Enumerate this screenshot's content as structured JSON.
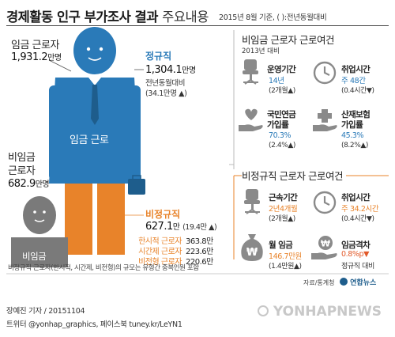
{
  "header": {
    "title_bold": "경제활동 인구 부가조사 결과",
    "title_thin": "주요내용",
    "note": "2015년 8월 기준, (  ):전년동월대비"
  },
  "wage_workers": {
    "label": "임금 근로자",
    "value": "1,931.2",
    "unit": "만명",
    "figure_text": "임금 근로"
  },
  "nonwage_workers": {
    "label_line1": "비임금",
    "label_line2": "근로자",
    "value": "682.9",
    "unit": "만명",
    "figure_text": "비임금"
  },
  "regular": {
    "title": "정규직",
    "value": "1,304.1",
    "unit": "만명",
    "sub1": "전년동월대비",
    "sub2": "(34.1만명 ▲)"
  },
  "irregular": {
    "title": "비정규직",
    "value": "627.1",
    "unit": "만",
    "change": "(19.4만 ▲)",
    "breakdown": [
      {
        "label": "한시적 근로자",
        "value": "363.8만"
      },
      {
        "label": "시간제 근로자",
        "value": "223.6만"
      },
      {
        "label": "비전형 근로자",
        "value": "220.6만"
      }
    ]
  },
  "nonwage_conditions": {
    "title": "비임금 근로자 근로여건",
    "subtitle": "2013년 대비",
    "stats": [
      {
        "label": "운영기간",
        "value": "14년",
        "change": "(2개월▲)",
        "icon": "office-chair-icon"
      },
      {
        "label": "취업시간",
        "value": "주 48간",
        "change": "(0.4시간▼)",
        "icon": "clock-icon"
      },
      {
        "label_line1": "국민연금",
        "label_line2": "가입률",
        "value": "70.3%",
        "change": "(2.4%▲)",
        "icon": "heart-hand-icon"
      },
      {
        "label_line1": "산재보험",
        "label_line2": "가입률",
        "value": "45.3%",
        "change": "(8.2%▲)",
        "icon": "medical-cross-hand-icon"
      }
    ]
  },
  "irregular_conditions": {
    "title": "비정규직 근로자 근로여건",
    "stats": [
      {
        "label": "근속기간",
        "value": "2년4개월",
        "change": "(2개월▲)",
        "icon": "office-chair-icon"
      },
      {
        "label": "취업시간",
        "value": "주 34.2시간",
        "change": "(0.4시간▼)",
        "icon": "clock-icon"
      },
      {
        "label": "월 임금",
        "value": "146.7만원",
        "change": "(1.4만원▲)",
        "icon": "money-bag-icon"
      },
      {
        "label": "임금격차",
        "value": "0.8%p▼",
        "change": "정규직 대비",
        "icon": "won-hand-icon"
      }
    ]
  },
  "footnote": "비정규직 근로자(한시적, 시간제, 비전형)의 규모는 유형간 중복인원 포함",
  "source": "자료/통계청",
  "brand": "연합뉴스",
  "credit_line1": "장예진 기자 / 20151104",
  "credit_line2": "트위터 @yonhap_graphics, 페이스북 tuney.kr/LeYN1",
  "watermark": "YONHAPNEWS",
  "colors": {
    "blue": "#2a7ab8",
    "orange": "#e8832a",
    "red": "#e25a2a",
    "gray": "#7a7a7a"
  }
}
